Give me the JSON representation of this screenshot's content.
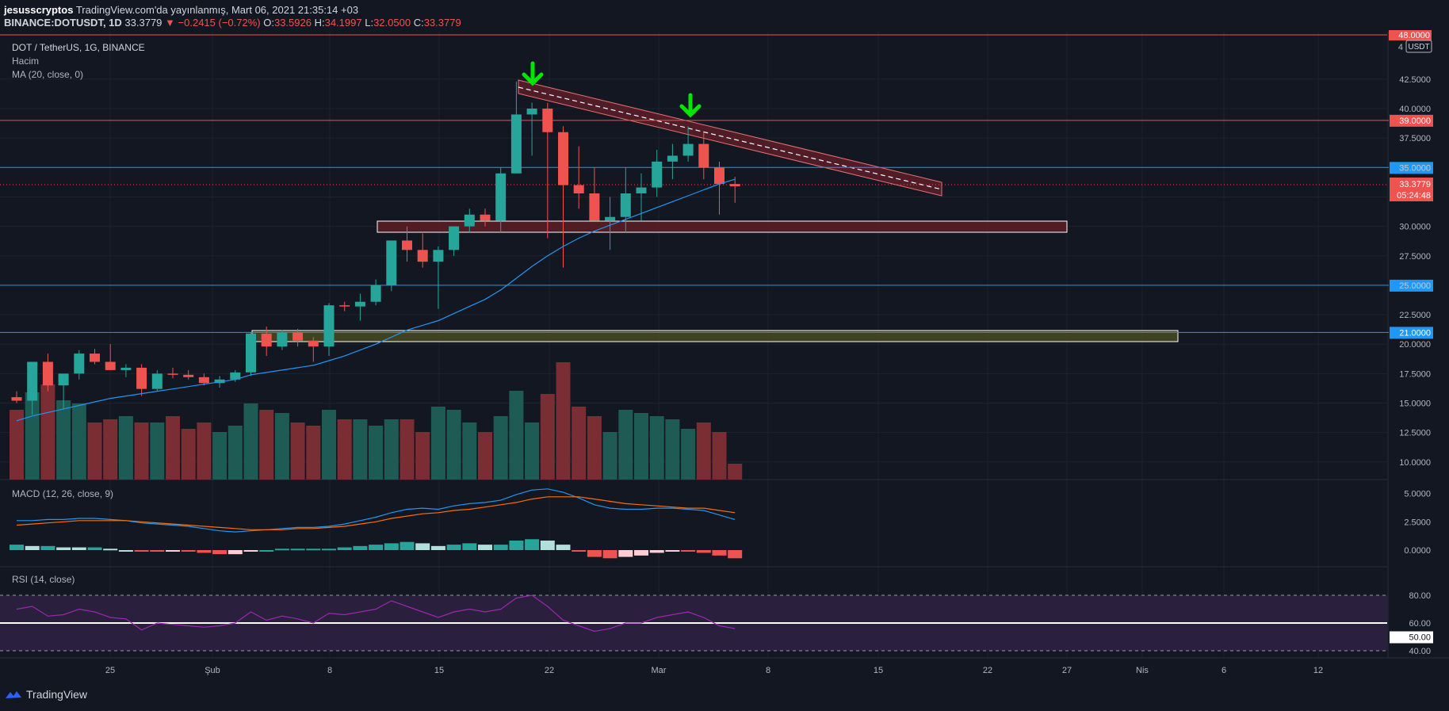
{
  "header": {
    "publisher": "jesusscryptos",
    "published_text": "TradingView.com'da yayınlanmış, Mart 06, 2021 21:35:14 +03",
    "symbol": "BINANCE:DOTUSDT, 1D",
    "price": "33.3779",
    "change": "▼ −0.2415 (−0.72%)",
    "o_label": "O:",
    "o_value": "33.5926",
    "h_label": "H:",
    "h_value": "34.1997",
    "l_label": "L:",
    "l_value": "32.0500",
    "c_label": "C:",
    "c_value": "33.3779"
  },
  "legend": {
    "title": "DOT / TetherUS, 1G, BINANCE",
    "volume": "Hacim",
    "ma": "MA (20, close, 0)",
    "macd": "MACD (12, 26, close, 9)",
    "rsi": "RSI (14, close)"
  },
  "colors": {
    "bg": "#131722",
    "grid": "#1e222d",
    "up": "#26a69a",
    "down": "#ef5350",
    "ma": "#2196f3",
    "macd_line": "#2196f3",
    "signal_line": "#ff6d00",
    "rsi_line": "#9c27b0",
    "rsi_band": "#3a2147",
    "accent_green": "#00e600"
  },
  "price_axis": {
    "currency": "USDT",
    "ticks": [
      "42.5000",
      "40.0000",
      "37.5000",
      "35.0000",
      "32.5000",
      "30.0000",
      "27.5000",
      "25.0000",
      "22.5000",
      "20.0000",
      "17.5000",
      "15.0000",
      "12.5000",
      "10.0000"
    ],
    "top_label": "48.0000",
    "top_partial": "4"
  },
  "levels": [
    {
      "value": 39,
      "label": "39.0000",
      "color": "#ef5350"
    },
    {
      "value": 35,
      "label": "35.0000",
      "color": "#2196f3"
    },
    {
      "value": 25,
      "label": "25.0000",
      "color": "#2196f3"
    },
    {
      "value": 21,
      "label": "21.0000",
      "color": "#2196f3"
    }
  ],
  "current": {
    "price": "33.3779",
    "countdown": "05:24:48"
  },
  "macd_axis": {
    "ticks": [
      "5.0000",
      "2.5000",
      "0.0000"
    ]
  },
  "rsi_axis": {
    "ticks": [
      "80.00",
      "60.00",
      "50.00",
      "40.00"
    ]
  },
  "time_axis": [
    "25",
    "Şub",
    "8",
    "15",
    "22",
    "Mar",
    "8",
    "15",
    "22",
    "27",
    "Nis",
    "6",
    "12"
  ],
  "footer": {
    "brand": "TradingView"
  },
  "chart_data": {
    "type": "candlestick",
    "series": [
      {
        "o": 15.5,
        "h": 16.0,
        "l": 15.0,
        "c": 15.2
      },
      {
        "o": 15.2,
        "h": 18.5,
        "l": 14.0,
        "c": 18.5
      },
      {
        "o": 18.5,
        "h": 19.2,
        "l": 16.0,
        "c": 16.5
      },
      {
        "o": 16.5,
        "h": 17.2,
        "l": 14.5,
        "c": 17.5
      },
      {
        "o": 17.5,
        "h": 19.5,
        "l": 17.0,
        "c": 19.2
      },
      {
        "o": 19.2,
        "h": 19.6,
        "l": 18.3,
        "c": 18.5
      },
      {
        "o": 18.5,
        "h": 20.0,
        "l": 17.8,
        "c": 17.8
      },
      {
        "o": 17.8,
        "h": 18.3,
        "l": 17.2,
        "c": 18.0
      },
      {
        "o": 18.0,
        "h": 18.3,
        "l": 15.6,
        "c": 16.2
      },
      {
        "o": 16.2,
        "h": 17.8,
        "l": 16.0,
        "c": 17.5
      },
      {
        "o": 17.5,
        "h": 18.0,
        "l": 17.1,
        "c": 17.4
      },
      {
        "o": 17.4,
        "h": 17.8,
        "l": 17.0,
        "c": 17.2
      },
      {
        "o": 17.2,
        "h": 17.5,
        "l": 16.5,
        "c": 16.7
      },
      {
        "o": 16.7,
        "h": 17.3,
        "l": 16.3,
        "c": 17.0
      },
      {
        "o": 17.0,
        "h": 17.8,
        "l": 16.8,
        "c": 17.6
      },
      {
        "o": 17.6,
        "h": 21.0,
        "l": 17.3,
        "c": 20.9
      },
      {
        "o": 20.9,
        "h": 21.5,
        "l": 19.0,
        "c": 19.8
      },
      {
        "o": 19.8,
        "h": 21.2,
        "l": 19.5,
        "c": 21.0
      },
      {
        "o": 21.0,
        "h": 21.3,
        "l": 19.8,
        "c": 20.3
      },
      {
        "o": 20.3,
        "h": 20.6,
        "l": 18.5,
        "c": 19.8
      },
      {
        "o": 19.8,
        "h": 23.5,
        "l": 19.0,
        "c": 23.3
      },
      {
        "o": 23.3,
        "h": 23.6,
        "l": 22.8,
        "c": 23.2
      },
      {
        "o": 23.2,
        "h": 24.3,
        "l": 22.0,
        "c": 23.6
      },
      {
        "o": 23.6,
        "h": 25.5,
        "l": 23.3,
        "c": 25.0
      },
      {
        "o": 25.0,
        "h": 28.8,
        "l": 24.5,
        "c": 28.8
      },
      {
        "o": 28.8,
        "h": 30.0,
        "l": 27.0,
        "c": 28.0
      },
      {
        "o": 28.0,
        "h": 29.4,
        "l": 26.5,
        "c": 27.0
      },
      {
        "o": 27.0,
        "h": 28.3,
        "l": 23.0,
        "c": 28.0
      },
      {
        "o": 28.0,
        "h": 30.0,
        "l": 27.5,
        "c": 30.0
      },
      {
        "o": 30.0,
        "h": 31.5,
        "l": 29.5,
        "c": 31.0
      },
      {
        "o": 31.0,
        "h": 31.5,
        "l": 30.0,
        "c": 30.5
      },
      {
        "o": 30.5,
        "h": 35.0,
        "l": 29.5,
        "c": 34.5
      },
      {
        "o": 34.5,
        "h": 42.3,
        "l": 34.5,
        "c": 39.5
      },
      {
        "o": 39.5,
        "h": 40.5,
        "l": 36.0,
        "c": 40.0
      },
      {
        "o": 40.0,
        "h": 40.5,
        "l": 29.0,
        "c": 38.0
      },
      {
        "o": 38.0,
        "h": 38.5,
        "l": 26.5,
        "c": 33.5
      },
      {
        "o": 33.5,
        "h": 36.8,
        "l": 31.5,
        "c": 32.8
      },
      {
        "o": 32.8,
        "h": 35.0,
        "l": 30.5,
        "c": 30.5
      },
      {
        "o": 30.5,
        "h": 32.5,
        "l": 28.0,
        "c": 30.8
      },
      {
        "o": 30.8,
        "h": 35.0,
        "l": 29.5,
        "c": 32.8
      },
      {
        "o": 32.8,
        "h": 34.5,
        "l": 30.5,
        "c": 33.3
      },
      {
        "o": 33.3,
        "h": 36.5,
        "l": 32.5,
        "c": 35.5
      },
      {
        "o": 35.5,
        "h": 37.0,
        "l": 34.0,
        "c": 36.0
      },
      {
        "o": 36.0,
        "h": 38.5,
        "l": 35.5,
        "c": 37.0
      },
      {
        "o": 37.0,
        "h": 38.0,
        "l": 34.0,
        "c": 35.0
      },
      {
        "o": 35.0,
        "h": 35.5,
        "l": 31.0,
        "c": 33.6
      },
      {
        "o": 33.6,
        "h": 34.2,
        "l": 32.0,
        "c": 33.4
      }
    ],
    "volume": [
      44,
      55,
      60,
      50,
      48,
      36,
      38,
      40,
      36,
      36,
      40,
      32,
      36,
      30,
      34,
      48,
      44,
      42,
      36,
      34,
      44,
      38,
      38,
      34,
      38,
      38,
      30,
      46,
      44,
      36,
      30,
      40,
      56,
      36,
      54,
      74,
      46,
      40,
      30,
      44,
      42,
      40,
      38,
      32,
      36,
      30,
      10
    ],
    "ma20": [
      13.5,
      13.9,
      14.2,
      14.5,
      14.8,
      15.1,
      15.4,
      15.6,
      15.8,
      16.0,
      16.2,
      16.4,
      16.6,
      16.8,
      17.0,
      17.4,
      17.6,
      17.8,
      18.0,
      18.2,
      18.6,
      19.0,
      19.5,
      20.0,
      20.6,
      21.2,
      21.6,
      22.0,
      22.6,
      23.2,
      23.8,
      24.6,
      25.6,
      26.6,
      27.5,
      28.3,
      29.0,
      29.6,
      30.1,
      30.6,
      31.1,
      31.6,
      32.1,
      32.6,
      33.1,
      33.6,
      34.0
    ],
    "macd": [
      2.6,
      2.6,
      2.7,
      2.7,
      2.8,
      2.8,
      2.7,
      2.6,
      2.4,
      2.3,
      2.2,
      2.1,
      1.9,
      1.7,
      1.6,
      1.7,
      1.8,
      1.9,
      2.0,
      2.0,
      2.1,
      2.3,
      2.6,
      2.9,
      3.3,
      3.6,
      3.7,
      3.6,
      3.9,
      4.1,
      4.2,
      4.4,
      4.9,
      5.3,
      5.4,
      5.1,
      4.6,
      4.0,
      3.7,
      3.6,
      3.6,
      3.7,
      3.7,
      3.6,
      3.5,
      3.1,
      2.7
    ],
    "signal": [
      2.2,
      2.3,
      2.4,
      2.5,
      2.6,
      2.6,
      2.6,
      2.6,
      2.5,
      2.4,
      2.3,
      2.2,
      2.1,
      2.0,
      1.9,
      1.8,
      1.8,
      1.8,
      1.9,
      1.9,
      2.0,
      2.1,
      2.3,
      2.5,
      2.8,
      3.0,
      3.2,
      3.3,
      3.5,
      3.6,
      3.8,
      4.0,
      4.2,
      4.5,
      4.7,
      4.7,
      4.7,
      4.5,
      4.3,
      4.1,
      4.0,
      3.9,
      3.8,
      3.7,
      3.7,
      3.5,
      3.3
    ],
    "rsi": [
      70,
      72,
      65,
      66,
      70,
      68,
      64,
      63,
      55,
      60,
      59,
      58,
      57,
      58,
      60,
      68,
      62,
      65,
      63,
      60,
      67,
      66,
      68,
      70,
      76,
      72,
      68,
      64,
      68,
      70,
      68,
      70,
      78,
      80,
      72,
      62,
      58,
      54,
      56,
      60,
      60,
      64,
      66,
      68,
      64,
      58,
      56
    ],
    "ma_label": "MA 20",
    "xlabel": "",
    "ylabel": "USDT"
  }
}
